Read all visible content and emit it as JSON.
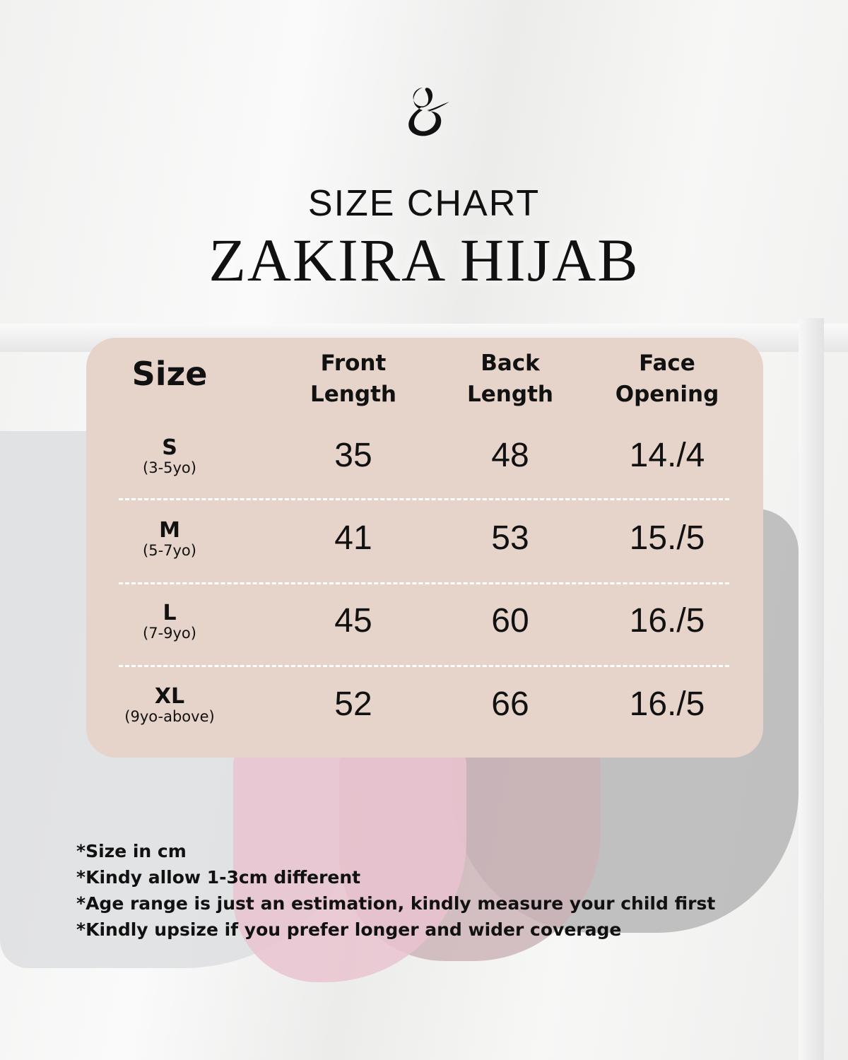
{
  "brand": {
    "logo_glyph": "g"
  },
  "header": {
    "subtitle": "SIZE CHART",
    "title": "ZAKIRA HIJAB"
  },
  "table": {
    "columns": [
      "Size",
      "Front Length",
      "Back Length",
      "Face Opening"
    ],
    "columns_split": [
      [
        "Size"
      ],
      [
        "Front",
        "Length"
      ],
      [
        "Back",
        "Length"
      ],
      [
        "Face",
        "Opening"
      ]
    ],
    "rows": [
      {
        "size": "S",
        "age": "(3-5yo)",
        "front": "35",
        "back": "48",
        "face": "14./4"
      },
      {
        "size": "M",
        "age": "(5-7yo)",
        "front": "41",
        "back": "53",
        "face": "15./5"
      },
      {
        "size": "L",
        "age": "(7-9yo)",
        "front": "45",
        "back": "60",
        "face": "16./5"
      },
      {
        "size": "XL",
        "age": "(9yo-above)",
        "front": "52",
        "back": "66",
        "face": "16./5"
      }
    ]
  },
  "notes": [
    "*Size in cm",
    "*Kindy allow 1-3cm different",
    "*Age range is just an estimation, kindly measure your child first",
    "*Kindly upsize if you prefer longer and wider coverage"
  ],
  "colors": {
    "card": "#e6d3c9",
    "text": "#111111"
  }
}
